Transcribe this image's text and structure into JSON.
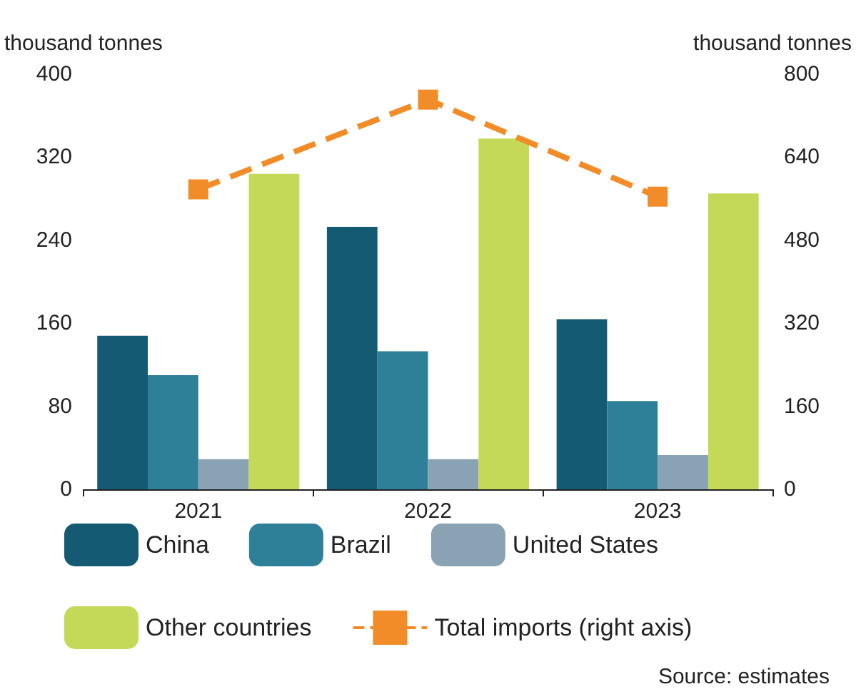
{
  "chart_data": {
    "type": "bar",
    "ylabel": "thousand tonnes",
    "y2label": "thousand tonnes",
    "categories": [
      "2021",
      "2022",
      "2023"
    ],
    "series": [
      {
        "name": "China",
        "color": "#155a73",
        "values": [
          148,
          253,
          164
        ]
      },
      {
        "name": "Brazil",
        "color": "#2e7f98",
        "values": [
          110,
          133,
          85
        ]
      },
      {
        "name": "United States",
        "color": "#8aa3b4",
        "values": [
          29,
          29,
          33
        ]
      },
      {
        "name": "Other countries",
        "color": "#c4d957",
        "values": [
          304,
          338,
          285
        ]
      },
      {
        "name": "Total imports (right axis)",
        "type": "line",
        "axis": "y2",
        "color": "#f28c28",
        "marker": "square",
        "line_style": "dashed",
        "values": [
          578,
          751,
          564
        ]
      }
    ],
    "ylim": [
      0,
      400
    ],
    "yticks": [
      0,
      80,
      160,
      240,
      320,
      400
    ],
    "y2lim": [
      0,
      800
    ],
    "y2ticks": [
      0,
      160,
      320,
      480,
      640,
      800
    ],
    "grid": false,
    "legend": "bottom",
    "annotations": [
      "Source: estimates"
    ]
  }
}
